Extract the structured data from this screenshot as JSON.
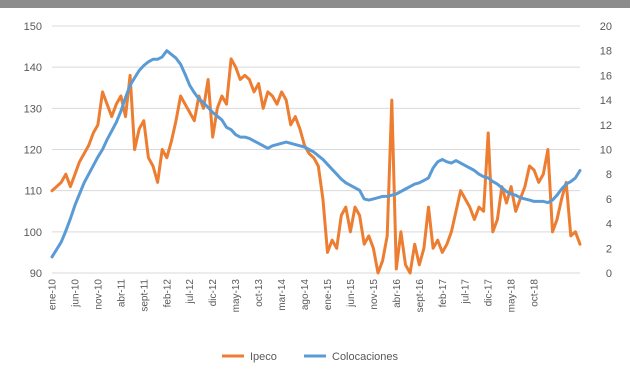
{
  "chart_data": {
    "type": "line",
    "title": "",
    "xlabel": "",
    "ylabel_left": "",
    "ylabel_right": "",
    "ylim_left": [
      90,
      150
    ],
    "ylim_right": [
      0,
      20
    ],
    "yticks_left": [
      "90",
      "100",
      "110",
      "120",
      "130",
      "140",
      "150"
    ],
    "yticks_right": [
      "0",
      "2",
      "4",
      "6",
      "8",
      "10",
      "12",
      "14",
      "16",
      "18",
      "20"
    ],
    "grid": true,
    "legend_position": "bottom",
    "x_tick_labels": [
      "ene-10",
      "jun-10",
      "nov-10",
      "abr-11",
      "sept-11",
      "feb-12",
      "jul-12",
      "dic-12",
      "may-13",
      "oct-13",
      "mar-14",
      "ago-14",
      "ene-15",
      "jun-15",
      "nov-15",
      "abr-16",
      "sept-16",
      "feb-17",
      "jul-17",
      "dic-17",
      "may-18",
      "oct-18"
    ],
    "x_tick_start_index": 0,
    "x_tick_step": 5,
    "series": [
      {
        "name": "Ipeco",
        "axis": "left",
        "color": "#ED7D31",
        "values": [
          110,
          111,
          112,
          114,
          111,
          114,
          117,
          119,
          121,
          124,
          126,
          134,
          131,
          128,
          131,
          133,
          128,
          138,
          120,
          125,
          127,
          118,
          116,
          112,
          120,
          118,
          122,
          127,
          133,
          131,
          129,
          127,
          133,
          130,
          137,
          123,
          130,
          133,
          131,
          142,
          140,
          137,
          138,
          137,
          134,
          136,
          130,
          134,
          133,
          131,
          134,
          132,
          126,
          128,
          125,
          121,
          119,
          118,
          116,
          108,
          95,
          98,
          96,
          104,
          106,
          100,
          106,
          104,
          97,
          99,
          96,
          90,
          93,
          99,
          132,
          91,
          100,
          92,
          90,
          97,
          92,
          96,
          106,
          96,
          98,
          95,
          97,
          100,
          105,
          110,
          108,
          106,
          103,
          106,
          105,
          124,
          100,
          103,
          111,
          107,
          111,
          105,
          108,
          111,
          116,
          115,
          112,
          114,
          120,
          100,
          103,
          108,
          112,
          99,
          100,
          97
        ]
      },
      {
        "name": "Colocaciones",
        "axis": "right",
        "color": "#5B9BD5",
        "values": [
          1.3,
          1.9,
          2.5,
          3.4,
          4.4,
          5.5,
          6.4,
          7.3,
          8.0,
          8.7,
          9.4,
          10.0,
          10.8,
          11.5,
          12.2,
          13.1,
          14.2,
          15.2,
          15.8,
          16.4,
          16.8,
          17.1,
          17.3,
          17.3,
          17.5,
          18.0,
          17.7,
          17.4,
          16.9,
          16.1,
          15.2,
          14.6,
          14.1,
          13.8,
          13.4,
          13.0,
          12.7,
          12.4,
          11.8,
          11.6,
          11.2,
          11.0,
          11.0,
          10.9,
          10.7,
          10.5,
          10.3,
          10.1,
          10.3,
          10.4,
          10.5,
          10.6,
          10.5,
          10.4,
          10.3,
          10.2,
          10.0,
          9.8,
          9.5,
          9.2,
          8.8,
          8.4,
          8.0,
          7.6,
          7.3,
          7.1,
          6.9,
          6.7,
          6.0,
          5.9,
          6.0,
          6.1,
          6.2,
          6.2,
          6.3,
          6.4,
          6.6,
          6.8,
          7.0,
          7.2,
          7.3,
          7.5,
          7.7,
          8.5,
          9.0,
          9.2,
          9.0,
          8.9,
          9.1,
          8.9,
          8.7,
          8.5,
          8.3,
          8.0,
          7.8,
          7.7,
          7.4,
          7.2,
          6.9,
          6.6,
          6.4,
          6.3,
          6.1,
          6.0,
          5.9,
          5.8,
          5.8,
          5.8,
          5.7,
          5.9,
          6.3,
          6.8,
          7.2,
          7.4,
          7.7,
          8.3
        ]
      }
    ]
  }
}
